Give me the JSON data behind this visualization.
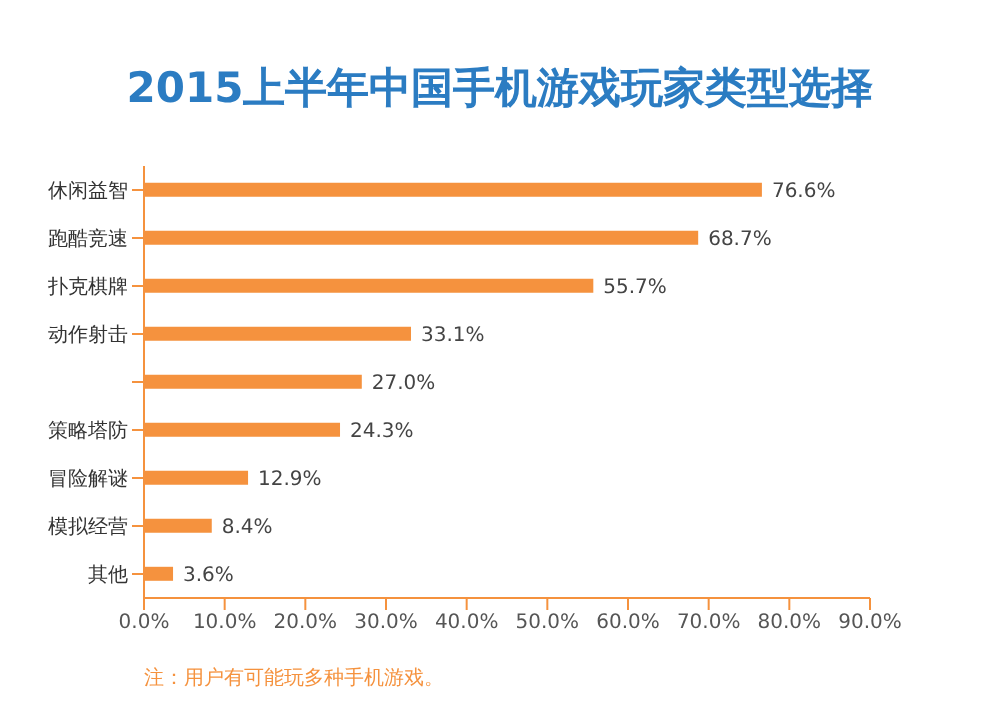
{
  "chart_data": {
    "type": "bar",
    "orientation": "horizontal",
    "title": "2015上半年中国手机游戏玩家类型选择",
    "categories": [
      "休闲益智",
      "跑酷竞速",
      "扑克棋牌",
      "动作射击",
      null,
      "策略塔防",
      "冒险解谜",
      "模拟经营",
      "其他"
    ],
    "values": [
      76.6,
      68.7,
      55.7,
      33.1,
      27.0,
      24.3,
      12.9,
      8.4,
      3.6
    ],
    "value_labels": [
      "76.6%",
      "68.7%",
      "55.7%",
      "33.1%",
      "27.0%",
      "24.3%",
      "12.9%",
      "8.4%",
      "3.6%"
    ],
    "color": "#f5923e",
    "xlim": [
      0,
      90
    ],
    "xticks": [
      {
        "value": 0,
        "label": "0.0%"
      },
      {
        "value": 10,
        "label": "10.0%"
      },
      {
        "value": 20,
        "label": "20.0%"
      },
      {
        "value": 30,
        "label": "30.0%"
      },
      {
        "value": 40,
        "label": "40.0%"
      },
      {
        "value": 50,
        "label": "50.0%"
      },
      {
        "value": 60,
        "label": "60.0%"
      },
      {
        "value": 70,
        "label": "70.0%"
      },
      {
        "value": 80,
        "label": "80.0%"
      },
      {
        "value": 90,
        "label": "90.0%"
      }
    ],
    "grid": false,
    "legend": false,
    "annotations": [
      "注：用户有可能玩多种手机游戏。"
    ]
  }
}
